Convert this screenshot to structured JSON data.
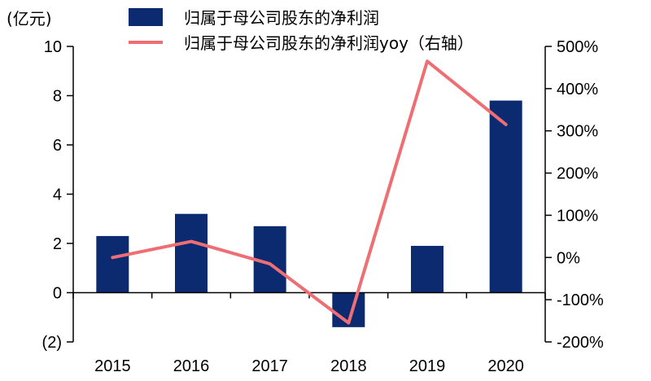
{
  "chart_data": {
    "type": "bar",
    "y_unit_label": "(亿元)",
    "categories": [
      "2015",
      "2016",
      "2017",
      "2018",
      "2019",
      "2020"
    ],
    "series": [
      {
        "name": "归属于母公司股东的净利润",
        "type": "bar",
        "axis": "left",
        "color": "#0b2a6f",
        "values": [
          2.3,
          3.2,
          2.7,
          -1.4,
          1.9,
          7.8
        ]
      },
      {
        "name": "归属于母公司股东的净利润yoy（右轴）",
        "type": "line",
        "axis": "right",
        "color": "#ee6e73",
        "values": [
          0,
          38,
          -15,
          -155,
          465,
          315
        ]
      }
    ],
    "y_left": {
      "ylim": [
        -2,
        10
      ],
      "ticks": [
        10,
        8,
        6,
        4,
        2,
        0,
        -2
      ],
      "tick_labels": [
        "10",
        "8",
        "6",
        "4",
        "2",
        "0",
        "(2)"
      ]
    },
    "y_right": {
      "ylim": [
        -200,
        500
      ],
      "ticks": [
        500,
        400,
        300,
        200,
        100,
        0,
        -100,
        -200
      ],
      "tick_labels": [
        "500%",
        "400%",
        "300%",
        "200%",
        "100%",
        "0%",
        "-100%",
        "-200%"
      ]
    },
    "grid": false,
    "legend_position": "top-center"
  }
}
